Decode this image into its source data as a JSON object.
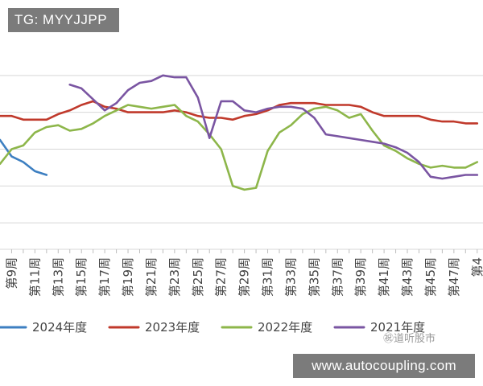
{
  "overlays": {
    "top_left_badge": "TG: MYYJJPP",
    "watermark": "㊗道听股市",
    "url_badge": "www.autocoupling.com"
  },
  "colors": {
    "2024": "#3d7fc1",
    "2023": "#c0392b",
    "2022": "#8db64a",
    "2021": "#7a55a2",
    "grid": "#d7d7d7",
    "background": "#ffffff"
  },
  "chart_data": {
    "type": "line",
    "title": "",
    "xlabel": "",
    "ylabel": "",
    "grid": true,
    "legend_position": "bottom",
    "x_ticks": [
      "第9周",
      "第11周",
      "第13周",
      "第15周",
      "第17周",
      "第19周",
      "第21周",
      "第23周",
      "第25周",
      "第27周",
      "第29周",
      "第31周",
      "第33周",
      "第35周",
      "第37周",
      "第39周",
      "第41周",
      "第43周",
      "第45周",
      "第47周",
      "第4"
    ],
    "x": [
      8,
      9,
      10,
      11,
      12,
      13,
      14,
      15,
      16,
      17,
      18,
      19,
      20,
      21,
      22,
      23,
      24,
      25,
      26,
      27,
      28,
      29,
      30,
      31,
      32,
      33,
      34,
      35,
      36,
      37,
      38,
      39,
      40,
      41,
      42,
      43,
      44,
      45,
      46,
      47,
      48,
      49
    ],
    "series": [
      {
        "name": "2024年度",
        "color_key": "2024",
        "values": [
          5.5,
          4.6,
          4.3,
          3.8,
          3.6,
          null,
          null,
          null,
          null,
          null,
          null,
          null,
          null,
          null,
          null,
          null,
          null,
          null,
          null,
          null,
          null,
          null,
          null,
          null,
          null,
          null,
          null,
          null,
          null,
          null,
          null,
          null,
          null,
          null,
          null,
          null,
          null,
          null,
          null,
          null,
          null,
          null
        ]
      },
      {
        "name": "2023年度",
        "color_key": "2023",
        "values": [
          6.8,
          6.8,
          6.6,
          6.6,
          6.6,
          6.9,
          7.1,
          7.4,
          7.6,
          7.3,
          7.2,
          7.0,
          7.0,
          7.0,
          7.0,
          7.1,
          7.0,
          6.8,
          6.7,
          6.7,
          6.6,
          6.8,
          6.9,
          7.1,
          7.4,
          7.5,
          7.5,
          7.5,
          7.4,
          7.4,
          7.4,
          7.3,
          7.0,
          6.8,
          6.8,
          6.8,
          6.8,
          6.6,
          6.5,
          6.5,
          6.4,
          6.4
        ]
      },
      {
        "name": "2022年度",
        "color_key": "2022",
        "values": [
          4.2,
          5.0,
          5.2,
          5.9,
          6.2,
          6.3,
          6.0,
          6.1,
          6.4,
          6.8,
          7.1,
          7.4,
          7.3,
          7.2,
          7.3,
          7.4,
          6.8,
          6.5,
          5.8,
          5.0,
          3.0,
          2.8,
          2.9,
          4.9,
          5.9,
          6.3,
          6.9,
          7.2,
          7.3,
          7.1,
          6.7,
          6.9,
          6.0,
          5.2,
          4.9,
          4.5,
          4.2,
          4.0,
          4.1,
          4.0,
          4.0,
          4.3
        ]
      },
      {
        "name": "2021年度",
        "color_key": "2021",
        "values": [
          null,
          null,
          null,
          null,
          null,
          null,
          8.5,
          8.3,
          7.7,
          7.1,
          7.5,
          8.2,
          8.6,
          8.7,
          9.0,
          8.9,
          8.9,
          7.8,
          5.6,
          7.6,
          7.6,
          7.1,
          7.0,
          7.2,
          7.3,
          7.3,
          7.2,
          6.7,
          5.8,
          5.7,
          5.6,
          5.5,
          5.4,
          5.3,
          5.1,
          4.8,
          4.3,
          3.5,
          3.4,
          3.5,
          3.6,
          3.6
        ]
      }
    ],
    "xlim": [
      8,
      49.5
    ],
    "ylim": [
      0,
      11
    ]
  }
}
